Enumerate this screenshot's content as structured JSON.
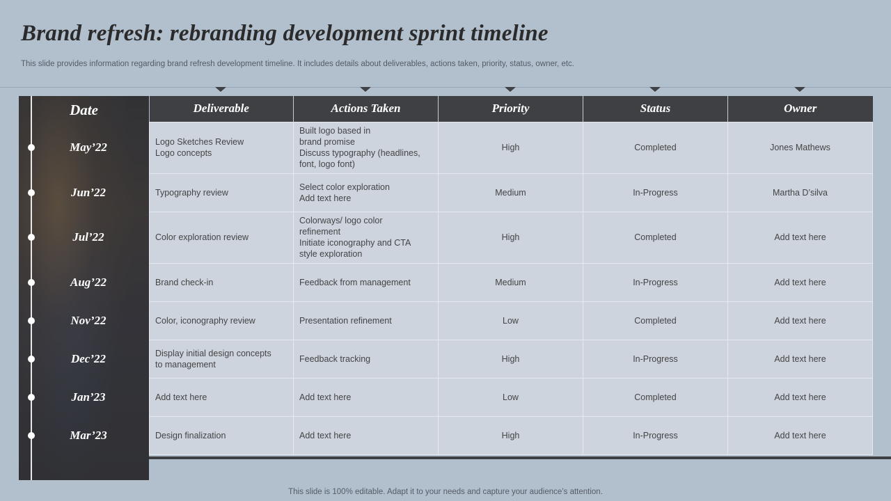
{
  "title": "Brand refresh: rebranding development sprint timeline",
  "subtitle": "This slide provides information regarding brand refresh development timeline. It includes details about deliverables, actions taken, priority, status, owner, etc.",
  "date_header": "Date",
  "columns": [
    "Deliverable",
    "Actions Taken",
    "Priority",
    "Status",
    "Owner"
  ],
  "rows": [
    {
      "date": "May’22",
      "deliverable": [
        "Logo Sketches Review",
        "Logo concepts"
      ],
      "actions": [
        "Built logo based in",
        "brand promise",
        "Discuss typography (headlines,",
        "font, logo font)"
      ],
      "priority": "High",
      "status": "Completed",
      "owner": "Jones Mathews"
    },
    {
      "date": "Jun’22",
      "deliverable": [
        "Typography review"
      ],
      "actions": [
        "Select color exploration",
        "Add text here"
      ],
      "priority": "Medium",
      "status": "In-Progress",
      "owner": "Martha D’silva"
    },
    {
      "date": "Jul’22",
      "deliverable": [
        "Color exploration review"
      ],
      "actions": [
        "Colorways/ logo color",
        "refinement",
        "Initiate iconography and CTA",
        "style exploration"
      ],
      "priority": "High",
      "status": "Completed",
      "owner": "Add text here"
    },
    {
      "date": "Aug’22",
      "deliverable": [
        "Brand check-in"
      ],
      "actions": [
        "Feedback from management"
      ],
      "priority": "Medium",
      "status": "In-Progress",
      "owner": "Add text here"
    },
    {
      "date": "Nov’22",
      "deliverable": [
        "Color, iconography review"
      ],
      "actions": [
        "Presentation refinement"
      ],
      "priority": "Low",
      "status": "Completed",
      "owner": "Add text here"
    },
    {
      "date": "Dec’22",
      "deliverable": [
        "Display initial design concepts",
        "to management"
      ],
      "actions": [
        "Feedback tracking"
      ],
      "priority": "High",
      "status": "In-Progress",
      "owner": "Add text here"
    },
    {
      "date": "Jan’23",
      "deliverable": [
        "Add text here"
      ],
      "actions": [
        "Add text here"
      ],
      "priority": "Low",
      "status": "Completed",
      "owner": "Add text here"
    },
    {
      "date": "Mar’23",
      "deliverable": [
        "Design finalization"
      ],
      "actions": [
        "Add text here"
      ],
      "priority": "High",
      "status": "In-Progress",
      "owner": "Add text here"
    }
  ],
  "footer": "This slide is 100% editable. Adapt it to your needs and capture your audience’s attention."
}
